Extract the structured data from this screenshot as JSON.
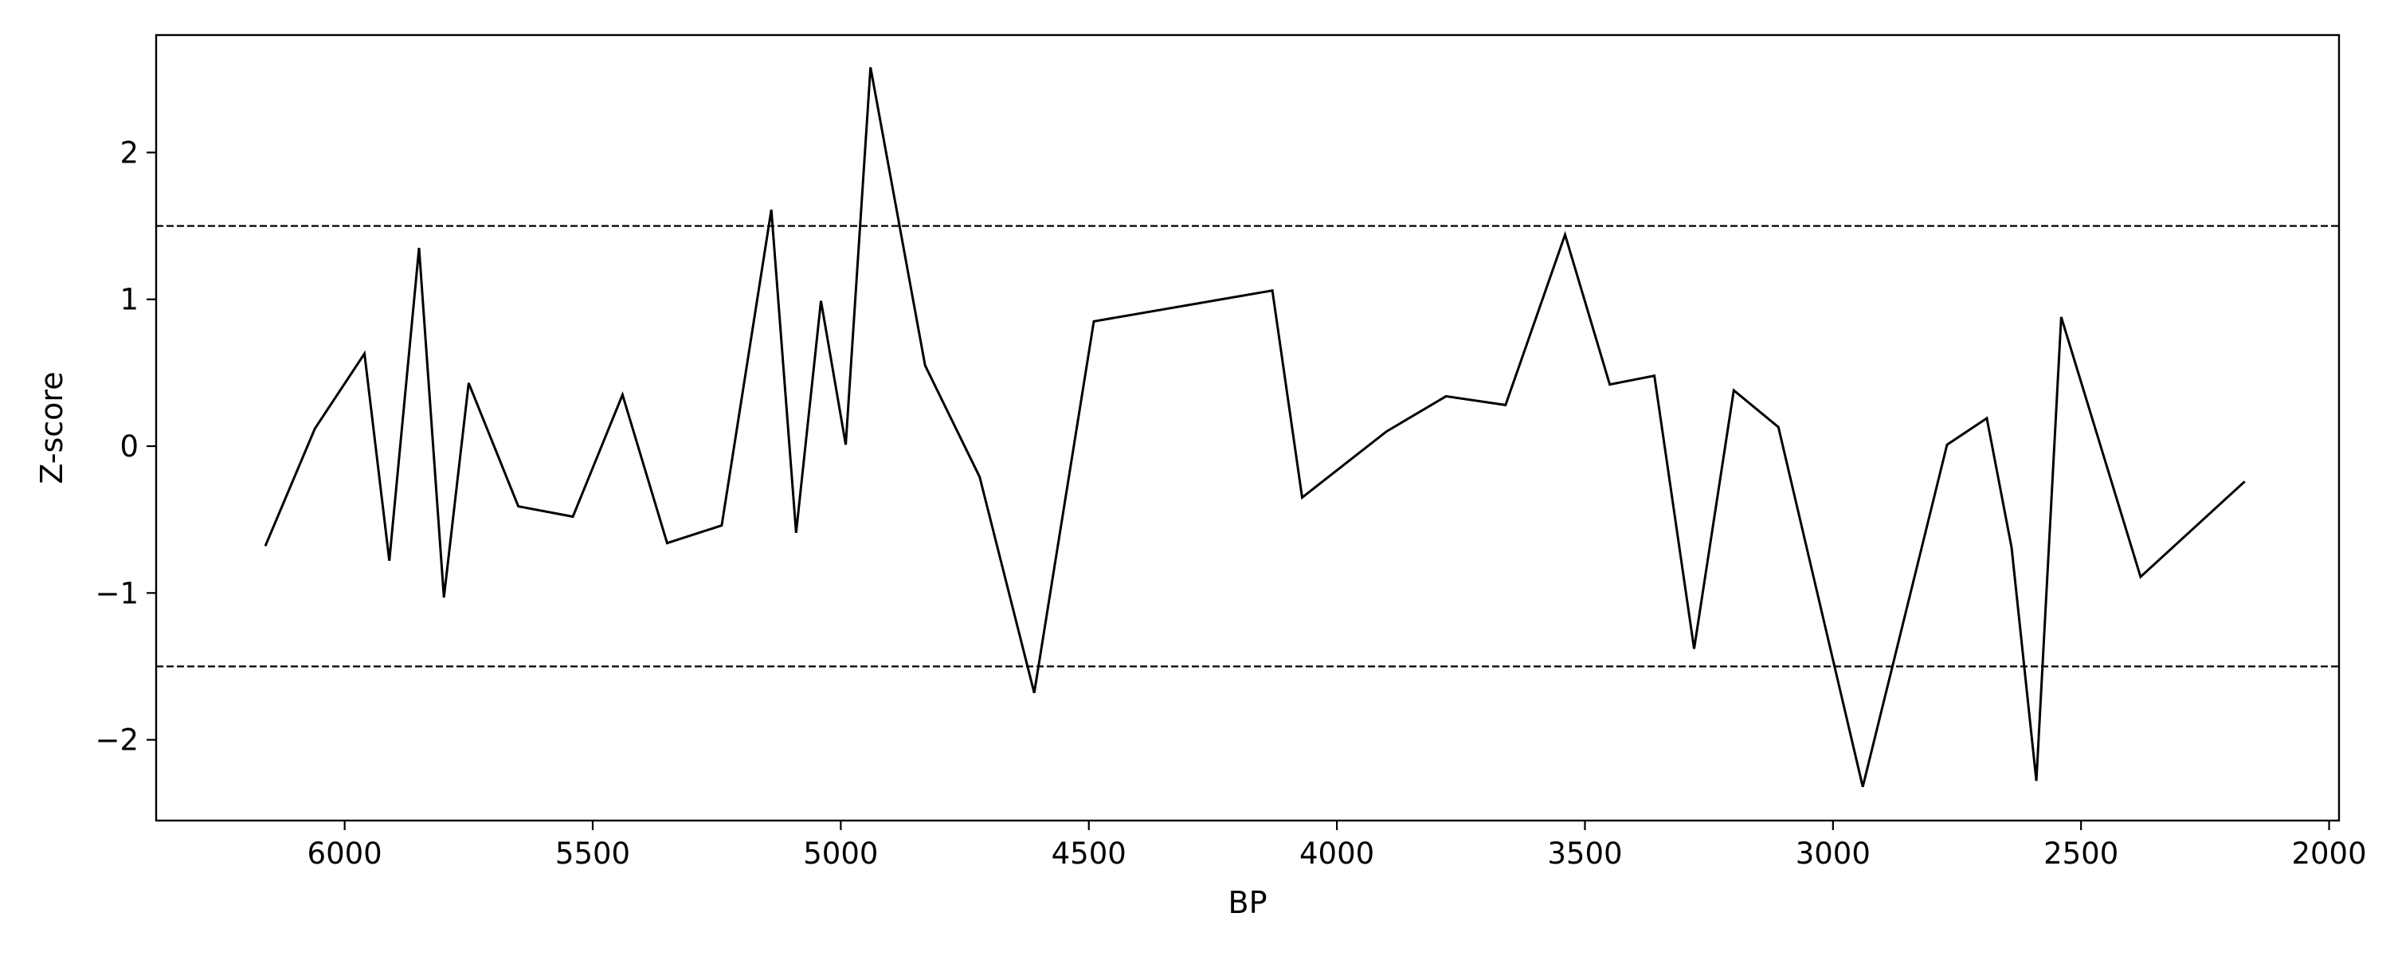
{
  "chart_data": {
    "type": "line",
    "title": "",
    "xlabel": "BP",
    "ylabel": "Z-score",
    "xlim": [
      6380,
      1980
    ],
    "ylim": [
      -2.55,
      2.8
    ],
    "x_reversed": true,
    "grid": false,
    "legend": "none",
    "x_ticks": [
      6000,
      5500,
      5000,
      4500,
      4000,
      3500,
      3000,
      2500,
      2000
    ],
    "y_ticks": [
      -2,
      -1,
      0,
      1,
      2
    ],
    "x_tick_labels": [
      "6000",
      "5500",
      "5000",
      "4500",
      "4000",
      "3500",
      "3000",
      "2500",
      "2000"
    ],
    "y_tick_labels": [
      "−2",
      "−1",
      "0",
      "1",
      "2"
    ],
    "reference_lines": [
      {
        "y": 1.5,
        "style": "dashed"
      },
      {
        "y": -1.5,
        "style": "dashed"
      }
    ],
    "series": [
      {
        "color": "#000000",
        "x": [
          6160,
          6060,
          5960,
          5910,
          5850,
          5800,
          5750,
          5650,
          5540,
          5440,
          5350,
          5240,
          5140,
          5090,
          5040,
          4990,
          4940,
          4830,
          4720,
          4610,
          4490,
          4130,
          4070,
          3900,
          3780,
          3660,
          3540,
          3450,
          3360,
          3280,
          3200,
          3110,
          2940,
          2770,
          2690,
          2640,
          2590,
          2540,
          2380,
          2170
        ],
        "y": [
          -0.68,
          0.12,
          0.63,
          -0.78,
          1.35,
          -1.03,
          0.43,
          -0.41,
          -0.48,
          0.35,
          -0.66,
          -0.54,
          1.61,
          -0.59,
          0.99,
          0.01,
          2.58,
          0.55,
          -0.21,
          -1.68,
          0.85,
          1.06,
          -0.35,
          0.1,
          0.34,
          0.28,
          1.44,
          0.42,
          0.48,
          -1.38,
          0.38,
          0.13,
          -2.32,
          0.01,
          0.19,
          -0.69,
          -2.28,
          0.88,
          -0.89,
          -0.24
        ]
      }
    ]
  }
}
